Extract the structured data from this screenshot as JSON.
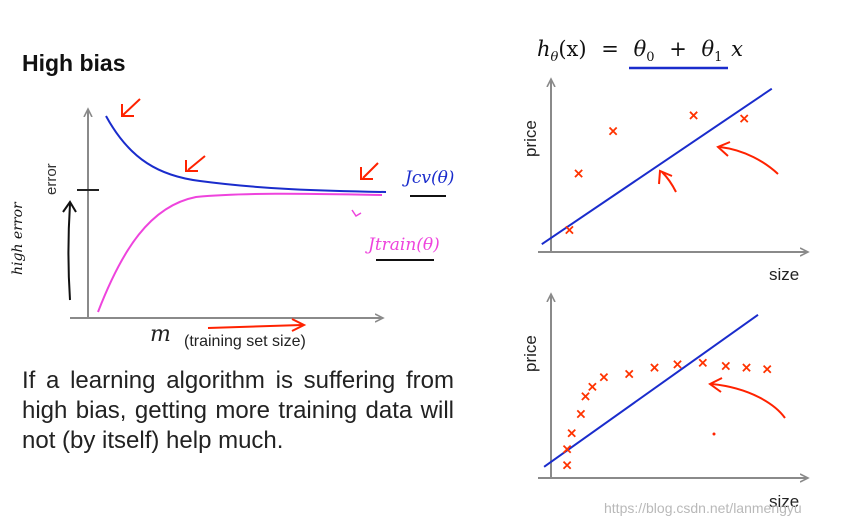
{
  "slide": {
    "title": "High bias",
    "body_text": "If a learning algorithm is suffering from high bias, getting more training data will not (by itself) help much.",
    "watermark": "https://blog.csdn.net/lanmengyu"
  },
  "learning_curve": {
    "y_axis_label": "error",
    "x_axis_variable": "m",
    "x_axis_label": "(training set size)",
    "curve_cv_label": "Jcv(θ)",
    "curve_train_label": "Jtrain(θ)",
    "handwritten_note": "high error",
    "colors": {
      "cv": "#1a2ccc",
      "train": "#ee44dd",
      "annotation": "#ff2200",
      "axis": "#8a8a8a"
    }
  },
  "hypothesis_formula": {
    "h": "h",
    "theta_sub": "θ",
    "arg": "(x)",
    "equals": "=",
    "theta0": "θ",
    "sub0": "0",
    "plus": "+",
    "theta1": "θ",
    "sub1": "1",
    "x": "x"
  },
  "chart_data": [
    {
      "type": "scatter",
      "xlabel": "size",
      "ylabel": "price",
      "xlim": [
        0,
        10
      ],
      "ylim": [
        0,
        10
      ],
      "points": [
        {
          "x": 0.8,
          "y": 1.4
        },
        {
          "x": 1.2,
          "y": 5.0
        },
        {
          "x": 2.7,
          "y": 7.7
        },
        {
          "x": 6.2,
          "y": 8.7
        },
        {
          "x": 8.4,
          "y": 8.5
        }
      ],
      "fit_line": {
        "x": [
          -0.4,
          9.6
        ],
        "y": [
          0.5,
          10.4
        ]
      },
      "marker_color": "#ff3300",
      "line_color": "#1a2ccc"
    },
    {
      "type": "scatter",
      "xlabel": "size",
      "ylabel": "price",
      "xlim": [
        0,
        10
      ],
      "ylim": [
        0,
        10
      ],
      "points": [
        {
          "x": 0.7,
          "y": 0.8
        },
        {
          "x": 0.7,
          "y": 1.8
        },
        {
          "x": 0.9,
          "y": 2.8
        },
        {
          "x": 1.3,
          "y": 4.0
        },
        {
          "x": 1.5,
          "y": 5.1
        },
        {
          "x": 1.8,
          "y": 5.7
        },
        {
          "x": 2.3,
          "y": 6.3
        },
        {
          "x": 3.4,
          "y": 6.5
        },
        {
          "x": 4.5,
          "y": 6.9
        },
        {
          "x": 5.5,
          "y": 7.1
        },
        {
          "x": 6.6,
          "y": 7.2
        },
        {
          "x": 7.6,
          "y": 7.0
        },
        {
          "x": 8.5,
          "y": 6.9
        },
        {
          "x": 9.4,
          "y": 6.8
        }
      ],
      "fit_line": {
        "x": [
          -0.3,
          9.0
        ],
        "y": [
          0.7,
          10.2
        ]
      },
      "marker_color": "#ff3300",
      "line_color": "#1a2ccc"
    }
  ]
}
